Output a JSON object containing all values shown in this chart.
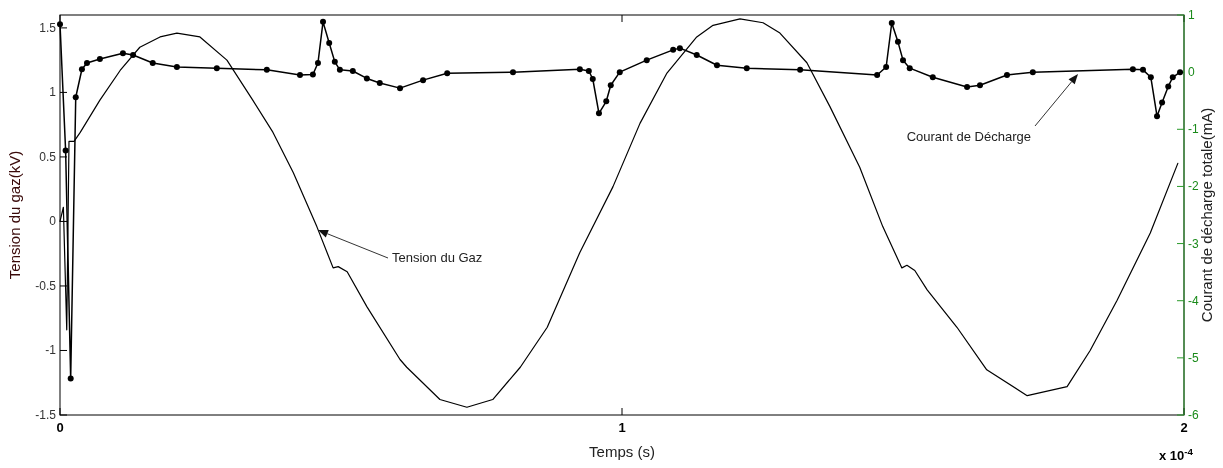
{
  "chart_data": {
    "type": "line",
    "xlabel": "Temps (s)",
    "ylabel": "Tension du gaz(kV)",
    "y2label": "Courant de décharge totale(mA)",
    "xlim": [
      0,
      2
    ],
    "xticks": [
      0,
      1,
      2
    ],
    "ylim": [
      -1.5,
      1.6
    ],
    "yticks": [
      1.5,
      1,
      0.5,
      0,
      -0.5,
      -1,
      -1.5
    ],
    "y2lim": [
      -6,
      1
    ],
    "y2ticks": [
      1,
      0,
      -1,
      -2,
      -3,
      -4,
      -5,
      -6
    ],
    "grid": false,
    "line_style": "solid",
    "annotations": [
      "Tension du Gaz",
      "Courant de Décharge",
      "x 10$^{-4}$"
    ],
    "series": [
      {
        "color": "#000000",
        "marker": "none",
        "x": [
          0,
          0.006,
          0.012,
          0.016,
          0.025,
          0.036,
          0.071,
          0.107,
          0.142,
          0.178,
          0.208,
          0.249,
          0.297,
          0.343,
          0.379,
          0.415,
          0.457,
          0.486,
          0.495,
          0.511,
          0.546,
          0.605,
          0.617,
          0.676,
          0.724,
          0.77,
          0.819,
          0.867,
          0.925,
          0.984,
          1.032,
          1.08,
          1.133,
          1.162,
          1.21,
          1.251,
          1.281,
          1.329,
          1.37,
          1.423,
          1.464,
          1.498,
          1.507,
          1.521,
          1.543,
          1.596,
          1.649,
          1.721,
          1.792,
          1.833,
          1.881,
          1.94,
          1.989
        ],
        "values": [
          0,
          0.11,
          -0.84,
          0.62,
          0.62,
          0.69,
          0.94,
          1.17,
          1.35,
          1.43,
          1.46,
          1.43,
          1.25,
          0.94,
          0.69,
          0.38,
          -0.04,
          -0.36,
          -0.35,
          -0.39,
          -0.66,
          -1.07,
          -1.13,
          -1.38,
          -1.44,
          -1.38,
          -1.13,
          -0.82,
          -0.24,
          0.27,
          0.76,
          1.15,
          1.43,
          1.52,
          1.57,
          1.54,
          1.46,
          1.23,
          0.89,
          0.42,
          -0.04,
          -0.36,
          -0.34,
          -0.38,
          -0.53,
          -0.82,
          -1.15,
          -1.35,
          -1.28,
          -1.0,
          -0.61,
          -0.09,
          0.45
        ]
      },
      {
        "axis": "y2",
        "color": "#000000",
        "marker": "circle",
        "x": [
          0,
          0.01,
          0.019,
          0.028,
          0.039,
          0.048,
          0.071,
          0.112,
          0.13,
          0.165,
          0.208,
          0.279,
          0.368,
          0.427,
          0.45,
          0.459,
          0.468,
          0.479,
          0.489,
          0.498,
          0.521,
          0.546,
          0.569,
          0.605,
          0.646,
          0.689,
          0.806,
          0.925,
          0.941,
          0.948,
          0.959,
          0.972,
          0.98,
          0.996,
          1.044,
          1.091,
          1.103,
          1.133,
          1.169,
          1.222,
          1.317,
          1.454,
          1.47,
          1.48,
          1.491,
          1.5,
          1.512,
          1.553,
          1.614,
          1.637,
          1.685,
          1.731,
          1.909,
          1.927,
          1.941,
          1.952,
          1.961,
          1.972,
          1.98,
          1.993
        ],
        "values": [
          0.84,
          -1.37,
          -5.36,
          -0.44,
          0.05,
          0.16,
          0.23,
          0.33,
          0.3,
          0.16,
          0.09,
          0.07,
          0.04,
          -0.05,
          -0.04,
          0.16,
          0.88,
          0.51,
          0.18,
          0.04,
          0.02,
          -0.11,
          -0.19,
          -0.28,
          -0.14,
          -0.02,
          0,
          0.05,
          0.02,
          -0.12,
          -0.72,
          -0.51,
          -0.23,
          0,
          0.21,
          0.39,
          0.42,
          0.3,
          0.12,
          0.07,
          0.04,
          -0.05,
          0.09,
          0.86,
          0.53,
          0.21,
          0.07,
          -0.09,
          -0.26,
          -0.23,
          -0.05,
          0,
          0.05,
          0.04,
          -0.09,
          -0.77,
          -0.53,
          -0.25,
          -0.09,
          0
        ]
      }
    ]
  }
}
